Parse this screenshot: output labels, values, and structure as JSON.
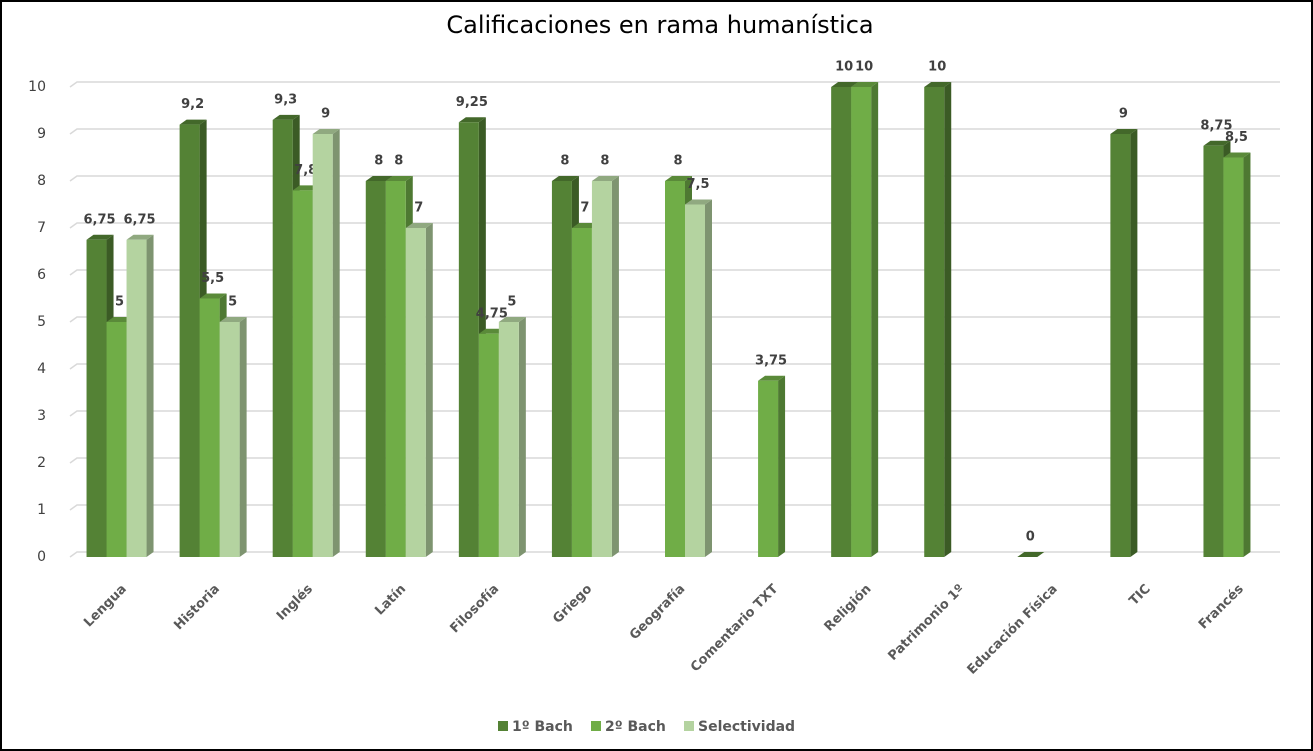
{
  "chart_data": {
    "type": "bar",
    "title": "Calificaciones en rama humanística",
    "categories": [
      "Lengua",
      "Historia",
      "Inglés",
      "Latín",
      "Filosofía",
      "Griego",
      "Geografía",
      "Comentario TXT",
      "Religión",
      "Patrimonio 1º",
      "Educación Física",
      "TIC",
      "Francés"
    ],
    "series": [
      {
        "name": "1º Bach",
        "color": "#548235",
        "values": [
          6.75,
          9.2,
          9.3,
          8,
          9.25,
          8,
          null,
          null,
          10,
          10,
          0,
          9,
          8.75
        ],
        "value_labels": [
          "6,75",
          "9,2",
          "9,3",
          "8",
          "9,25",
          "8",
          null,
          null,
          "10",
          "10",
          "0",
          "9",
          "8,75"
        ]
      },
      {
        "name": "2º Bach",
        "color": "#70ad47",
        "values": [
          5,
          5.5,
          7.8,
          8,
          4.75,
          7,
          8,
          3.75,
          10,
          null,
          null,
          null,
          8.5
        ],
        "value_labels": [
          "5",
          "5,5",
          "7,8",
          "8",
          "4,75",
          "7",
          "8",
          "3,75",
          "10",
          null,
          null,
          null,
          "8,5"
        ]
      },
      {
        "name": "Selectividad",
        "color": "#b4d3a0",
        "values": [
          6.75,
          5,
          9,
          7,
          5,
          8,
          7.5,
          null,
          null,
          null,
          null,
          null,
          null
        ],
        "value_labels": [
          "6,75",
          "5",
          "9",
          "7",
          "5",
          "8",
          "7,5",
          null,
          null,
          null,
          null,
          null,
          null
        ]
      }
    ],
    "ylim": [
      0,
      10
    ],
    "yticks": [
      0,
      1,
      2,
      3,
      4,
      5,
      6,
      7,
      8,
      9,
      10
    ],
    "grid": true,
    "legend": "bottom"
  }
}
